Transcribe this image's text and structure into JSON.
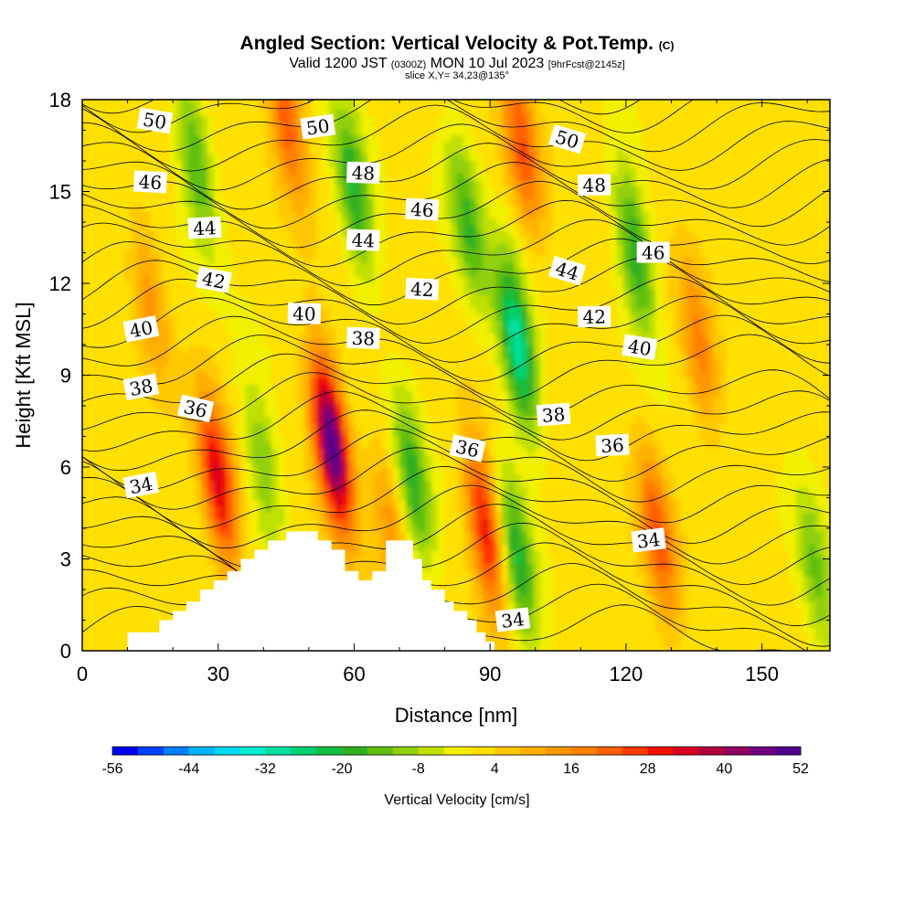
{
  "header": {
    "title_main": "Angled Section: Vertical Velocity & Pot.Temp.",
    "title_mark": "(C)",
    "valid_a": "Valid 1200 JST",
    "valid_b": "(0300Z)",
    "valid_c": "MON 10 Jul 2023",
    "valid_d": "[9hrFcst@2145z]",
    "slice": "slice X,Y= 34,23@135°"
  },
  "chart_data": {
    "type": "heatmap",
    "title": "Angled Section: Vertical Velocity & Pot.Temp.",
    "xlabel": "Distance [nm]",
    "ylabel": "Height [Kft MSL]",
    "xlim": [
      0,
      165
    ],
    "ylim": [
      0,
      18
    ],
    "xticks": [
      "0",
      "30",
      "60",
      "90",
      "120",
      "150"
    ],
    "yticks": [
      "0",
      "3",
      "6",
      "9",
      "12",
      "15",
      "18"
    ],
    "colorbar": {
      "label": "Vertical Velocity [cm/s]",
      "ticks": [
        "-56",
        "-44",
        "-32",
        "-20",
        "-8",
        "4",
        "16",
        "28",
        "40",
        "52"
      ],
      "range": [
        -56,
        52
      ],
      "colors": [
        "#0000f0",
        "#0040ff",
        "#0080ff",
        "#00b4ff",
        "#00d8f0",
        "#00f0d0",
        "#00e0a0",
        "#00d070",
        "#10c040",
        "#30b020",
        "#60c010",
        "#90d010",
        "#c0e000",
        "#f0f000",
        "#ffe000",
        "#ffc800",
        "#ffb000",
        "#ff9800",
        "#ff8000",
        "#ff6000",
        "#ff3800",
        "#f01000",
        "#d80020",
        "#b00040",
        "#900060",
        "#700080",
        "#500090"
      ]
    },
    "vertical_velocity_features": [
      {
        "kind": "updraft",
        "center_x": 30,
        "center_y": 5.5,
        "peak": 32
      },
      {
        "kind": "updraft",
        "center_x": 55,
        "center_y": 6.8,
        "peak": 50
      },
      {
        "kind": "updraft",
        "center_x": 45,
        "center_y": 17.5,
        "peak": 22
      },
      {
        "kind": "updraft",
        "center_x": 89,
        "center_y": 4.0,
        "peak": 30
      },
      {
        "kind": "updraft",
        "center_x": 97,
        "center_y": 16.5,
        "peak": 22
      },
      {
        "kind": "updraft",
        "center_x": 127,
        "center_y": 3.8,
        "peak": 22
      },
      {
        "kind": "updraft",
        "center_x": 136,
        "center_y": 10.0,
        "peak": 16
      },
      {
        "kind": "updraft",
        "center_x": 15,
        "center_y": 11.5,
        "peak": 12
      },
      {
        "kind": "updraft",
        "center_x": 68,
        "center_y": 4.2,
        "peak": 12
      },
      {
        "kind": "downdraft",
        "center_x": 96,
        "center_y": 10.0,
        "peak": -32
      },
      {
        "kind": "downdraft",
        "center_x": 96,
        "center_y": 3.0,
        "peak": -22
      },
      {
        "kind": "downdraft",
        "center_x": 60,
        "center_y": 15.0,
        "peak": -22
      },
      {
        "kind": "downdraft",
        "center_x": 85,
        "center_y": 14.0,
        "peak": -18
      },
      {
        "kind": "downdraft",
        "center_x": 122,
        "center_y": 13.0,
        "peak": -22
      },
      {
        "kind": "downdraft",
        "center_x": 25,
        "center_y": 16.0,
        "peak": -18
      },
      {
        "kind": "downdraft",
        "center_x": 73,
        "center_y": 5.5,
        "peak": -20
      },
      {
        "kind": "downdraft",
        "center_x": 40,
        "center_y": 6.0,
        "peak": -14
      },
      {
        "kind": "downdraft",
        "center_x": 162,
        "center_y": 2.5,
        "peak": -14
      }
    ],
    "potential_temperature_labels": [
      {
        "text": "50",
        "x": 16,
        "y": 17.3
      },
      {
        "text": "50",
        "x": 52,
        "y": 17.1
      },
      {
        "text": "50",
        "x": 107,
        "y": 16.7
      },
      {
        "text": "48",
        "x": 62,
        "y": 15.6
      },
      {
        "text": "48",
        "x": 113,
        "y": 15.2
      },
      {
        "text": "46",
        "x": 15,
        "y": 15.3
      },
      {
        "text": "46",
        "x": 75,
        "y": 14.4
      },
      {
        "text": "46",
        "x": 126,
        "y": 13.0
      },
      {
        "text": "44",
        "x": 27,
        "y": 13.8
      },
      {
        "text": "44",
        "x": 62,
        "y": 13.4
      },
      {
        "text": "44",
        "x": 107,
        "y": 12.4
      },
      {
        "text": "42",
        "x": 29,
        "y": 12.1
      },
      {
        "text": "42",
        "x": 75,
        "y": 11.8
      },
      {
        "text": "42",
        "x": 113,
        "y": 10.9
      },
      {
        "text": "40",
        "x": 13,
        "y": 10.5
      },
      {
        "text": "40",
        "x": 49,
        "y": 11.0
      },
      {
        "text": "40",
        "x": 123,
        "y": 9.9
      },
      {
        "text": "38",
        "x": 13,
        "y": 8.6
      },
      {
        "text": "38",
        "x": 62,
        "y": 10.2
      },
      {
        "text": "38",
        "x": 104,
        "y": 7.7
      },
      {
        "text": "36",
        "x": 25,
        "y": 7.9
      },
      {
        "text": "36",
        "x": 85,
        "y": 6.6
      },
      {
        "text": "36",
        "x": 117,
        "y": 6.7
      },
      {
        "text": "34",
        "x": 13,
        "y": 5.4
      },
      {
        "text": "34",
        "x": 125,
        "y": 3.6
      },
      {
        "text": "34",
        "x": 95,
        "y": 1.0
      }
    ],
    "terrain_top_kft": [
      [
        10,
        0.6
      ],
      [
        17,
        0.6
      ],
      [
        17,
        1.0
      ],
      [
        20,
        1.0
      ],
      [
        20,
        1.3
      ],
      [
        23,
        1.3
      ],
      [
        23,
        1.6
      ],
      [
        26,
        1.6
      ],
      [
        26,
        2.0
      ],
      [
        29,
        2.0
      ],
      [
        29,
        2.3
      ],
      [
        32,
        2.3
      ],
      [
        32,
        2.6
      ],
      [
        35,
        2.6
      ],
      [
        35,
        3.0
      ],
      [
        38,
        3.0
      ],
      [
        38,
        3.3
      ],
      [
        41,
        3.3
      ],
      [
        41,
        3.6
      ],
      [
        45,
        3.6
      ],
      [
        45,
        3.9
      ],
      [
        52,
        3.9
      ],
      [
        52,
        3.6
      ],
      [
        55,
        3.6
      ],
      [
        55,
        3.3
      ],
      [
        58,
        3.3
      ],
      [
        58,
        2.6
      ],
      [
        61,
        2.6
      ],
      [
        61,
        2.3
      ],
      [
        64,
        2.3
      ],
      [
        64,
        2.6
      ],
      [
        67,
        2.6
      ],
      [
        67,
        3.6
      ],
      [
        73,
        3.6
      ],
      [
        73,
        3.0
      ],
      [
        75,
        3.0
      ],
      [
        75,
        2.3
      ],
      [
        77,
        2.3
      ],
      [
        77,
        2.0
      ],
      [
        80,
        2.0
      ],
      [
        80,
        1.6
      ],
      [
        82,
        1.6
      ],
      [
        82,
        1.3
      ],
      [
        85,
        1.3
      ],
      [
        85,
        1.0
      ],
      [
        87,
        1.0
      ],
      [
        87,
        0.6
      ],
      [
        89,
        0.6
      ],
      [
        89,
        0.3
      ],
      [
        91,
        0.3
      ],
      [
        91,
        0
      ]
    ]
  }
}
